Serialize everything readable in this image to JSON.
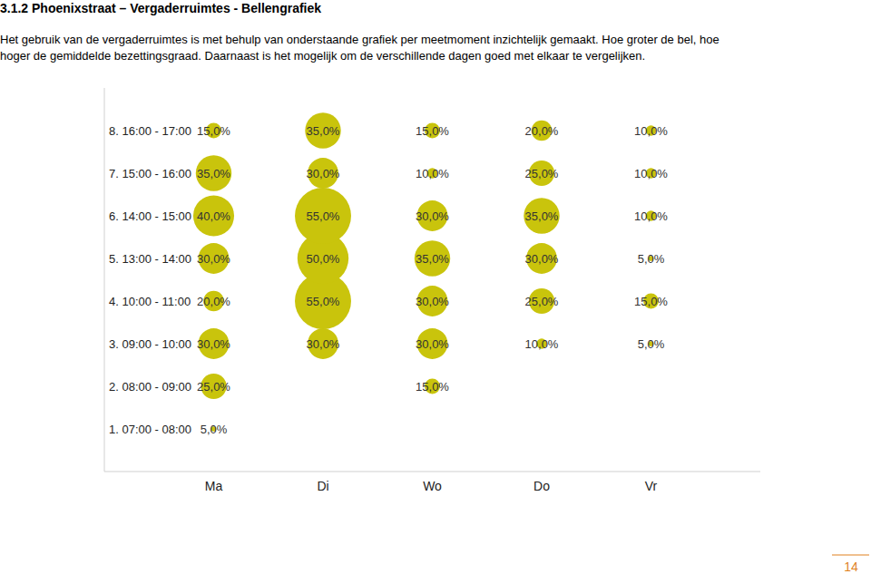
{
  "page": {
    "heading": "3.1.2 Phoenixstraat – Vergaderruimtes - Bellengrafiek",
    "intro": [
      "Het gebruik van de vergaderruimtes is met behulp van onderstaande grafiek per meetmoment inzichtelijk gemaakt. Hoe groter de bel, hoe",
      "hoger de gemiddelde bezettingsgraad. Daarnaast is het mogelijk om de verschillende dagen goed met elkaar te vergelijken."
    ],
    "number": "14"
  },
  "chart_data": {
    "type": "bubble",
    "categories": [
      "Ma",
      "Di",
      "Wo",
      "Do",
      "Vr"
    ],
    "y_categories": [
      "1. 07:00 - 08:00",
      "2. 08:00 - 09:00",
      "3. 09:00 - 10:00",
      "4. 10:00 - 11:00",
      "5. 13:00 - 14:00",
      "6. 14:00 - 15:00",
      "7. 15:00 - 16:00",
      "8. 16:00 - 17:00"
    ],
    "values": [
      [
        5,
        null,
        null,
        null,
        null
      ],
      [
        25,
        null,
        15,
        null,
        null
      ],
      [
        30,
        30,
        30,
        10,
        5
      ],
      [
        20,
        55,
        30,
        25,
        15
      ],
      [
        30,
        50,
        35,
        30,
        5
      ],
      [
        40,
        55,
        30,
        35,
        10
      ],
      [
        35,
        30,
        10,
        25,
        10
      ],
      [
        15,
        35,
        15,
        20,
        10
      ]
    ],
    "value_labels": [
      [
        "5,0%",
        null,
        null,
        null,
        null
      ],
      [
        "25,0%",
        null,
        "15,0%",
        null,
        null
      ],
      [
        "30,0%",
        "30,0%",
        "30,0%",
        "10,0%",
        "5,0%"
      ],
      [
        "20,0%",
        "55,0%",
        "30,0%",
        "25,0%",
        "15,0%"
      ],
      [
        "30,0%",
        "50,0%",
        "35,0%",
        "30,0%",
        "5,0%"
      ],
      [
        "40,0%",
        "55,0%",
        "30,0%",
        "35,0%",
        "10,0%"
      ],
      [
        "35,0%",
        "30,0%",
        "10,0%",
        "25,0%",
        "10,0%"
      ],
      [
        "15,0%",
        "35,0%",
        "15,0%",
        "20,0%",
        "10,0%"
      ]
    ],
    "data_labels": true,
    "color": "#c9c40c"
  }
}
